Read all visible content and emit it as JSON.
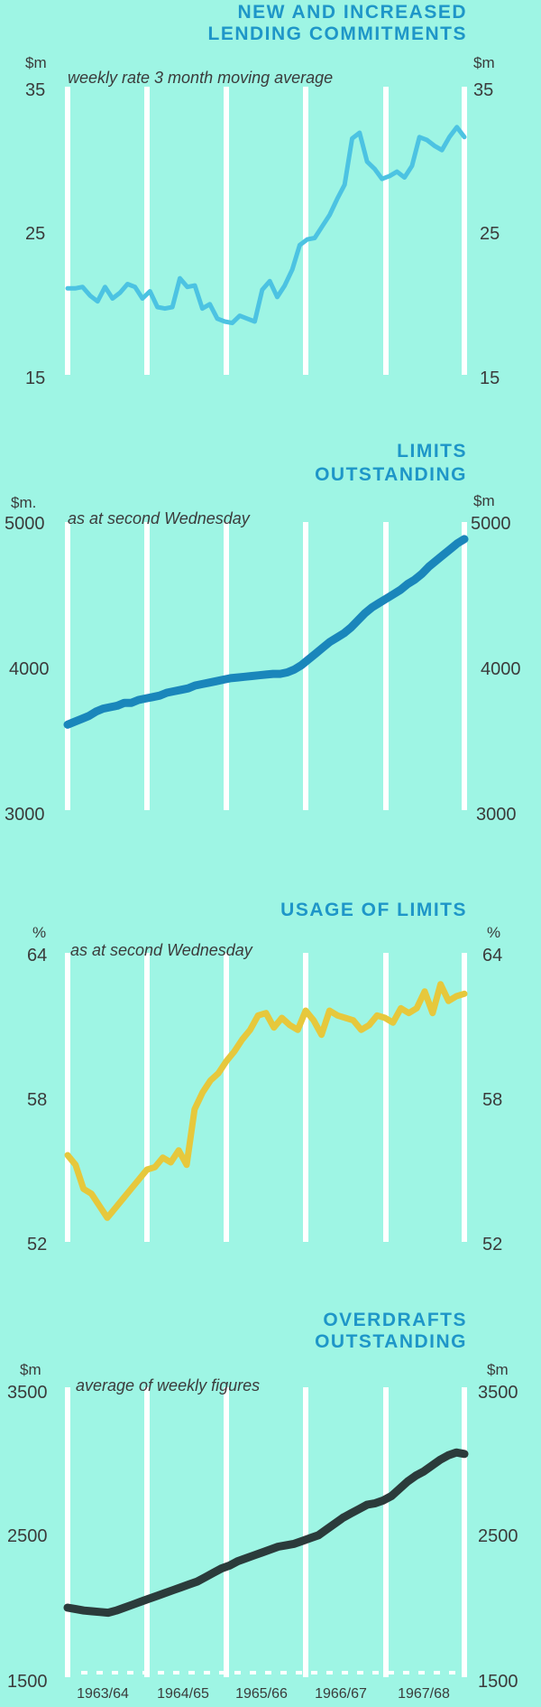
{
  "x_labels": [
    "1963/64",
    "1964/65",
    "1965/66",
    "1966/67",
    "1967/68"
  ],
  "chart_data": [
    {
      "type": "line",
      "title_lines": [
        "NEW AND INCREASED",
        "LENDING COMMITMENTS"
      ],
      "subtitle": "weekly rate  3 month  moving average",
      "unit_left": "$m",
      "unit_right": "$m",
      "ylim": [
        15,
        35
      ],
      "yticks": [
        "15",
        "25",
        "35"
      ],
      "color": "#4cc3e2",
      "grid": true,
      "x_range": [
        1963.5,
        1968.5
      ],
      "series": [
        {
          "values": [
            21,
            21,
            21.1,
            20.5,
            20.1,
            21.1,
            20.3,
            20.7,
            21.3,
            21.1,
            20.3,
            20.8,
            19.7,
            19.6,
            19.7,
            21.7,
            21.1,
            21.2,
            19.6,
            19.9,
            18.9,
            18.7,
            18.6,
            19.1,
            18.9,
            18.7,
            20.9,
            21.5,
            20.4,
            21.2,
            22.3,
            24,
            24.4,
            24.5,
            25.3,
            26.1,
            27.2,
            28.2,
            31.4,
            31.8,
            29.8,
            29.3,
            28.6,
            28.8,
            29.1,
            28.7,
            29.5,
            31.5,
            31.3,
            30.9,
            30.6,
            31.5,
            32.2,
            31.5
          ]
        }
      ]
    },
    {
      "type": "line",
      "title_lines": [
        "LIMITS",
        "OUTSTANDING"
      ],
      "subtitle": "as at second Wednesday",
      "unit_left": "$m.",
      "unit_right": "$m",
      "ylim": [
        3000,
        5000
      ],
      "yticks": [
        "3000",
        "4000",
        "5000"
      ],
      "color": "#1a86bb",
      "grid": true,
      "x_range": [
        1963.5,
        1968.5
      ],
      "series": [
        {
          "values": [
            3590,
            3610,
            3630,
            3650,
            3680,
            3700,
            3710,
            3720,
            3740,
            3740,
            3760,
            3770,
            3780,
            3790,
            3810,
            3820,
            3830,
            3840,
            3860,
            3870,
            3880,
            3890,
            3900,
            3910,
            3915,
            3920,
            3925,
            3930,
            3935,
            3940,
            3940,
            3950,
            3970,
            4000,
            4040,
            4080,
            4120,
            4160,
            4190,
            4220,
            4260,
            4310,
            4360,
            4400,
            4430,
            4460,
            4490,
            4520,
            4560,
            4590,
            4630,
            4680,
            4720,
            4760,
            4800,
            4840,
            4870
          ]
        }
      ]
    },
    {
      "type": "line",
      "title_lines": [
        "USAGE  OF LIMITS"
      ],
      "subtitle": "as at second Wednesday",
      "unit_left": "%",
      "unit_right": "%",
      "ylim": [
        52,
        64
      ],
      "yticks": [
        "52",
        "58",
        "64"
      ],
      "color": "#e6c83c",
      "grid": true,
      "x_range": [
        1963.5,
        1968.5
      ],
      "series": [
        {
          "values": [
            55.6,
            55.2,
            54.2,
            54,
            53.5,
            53,
            53.4,
            53.8,
            54.2,
            54.6,
            55,
            55.1,
            55.5,
            55.3,
            55.8,
            55.2,
            57.5,
            58.2,
            58.7,
            59,
            59.5,
            59.9,
            60.4,
            60.8,
            61.4,
            61.5,
            60.9,
            61.3,
            61,
            60.8,
            61.6,
            61.2,
            60.6,
            61.6,
            61.4,
            61.3,
            61.2,
            60.8,
            61,
            61.4,
            61.3,
            61.1,
            61.7,
            61.5,
            61.7,
            62.4,
            61.5,
            62.7,
            62,
            62.2,
            62.3
          ]
        }
      ]
    },
    {
      "type": "line",
      "title_lines": [
        "OVERDRAFTS",
        "OUTSTANDING"
      ],
      "subtitle": "average of weekly figures",
      "unit_left": "$m",
      "unit_right": "$m",
      "ylim": [
        1500,
        3500
      ],
      "yticks": [
        "1500",
        "2500",
        "3500"
      ],
      "color": "#2b3b3b",
      "grid": true,
      "x_range": [
        1963.5,
        1968.5
      ],
      "series": [
        {
          "values": [
            1980,
            1970,
            1960,
            1955,
            1950,
            1945,
            1960,
            1980,
            2000,
            2020,
            2040,
            2060,
            2080,
            2100,
            2120,
            2140,
            2160,
            2190,
            2220,
            2250,
            2270,
            2300,
            2320,
            2340,
            2360,
            2380,
            2400,
            2410,
            2420,
            2440,
            2460,
            2480,
            2520,
            2560,
            2600,
            2630,
            2660,
            2690,
            2700,
            2720,
            2750,
            2800,
            2850,
            2890,
            2920,
            2960,
            3000,
            3030,
            3050,
            3040
          ]
        }
      ]
    }
  ]
}
